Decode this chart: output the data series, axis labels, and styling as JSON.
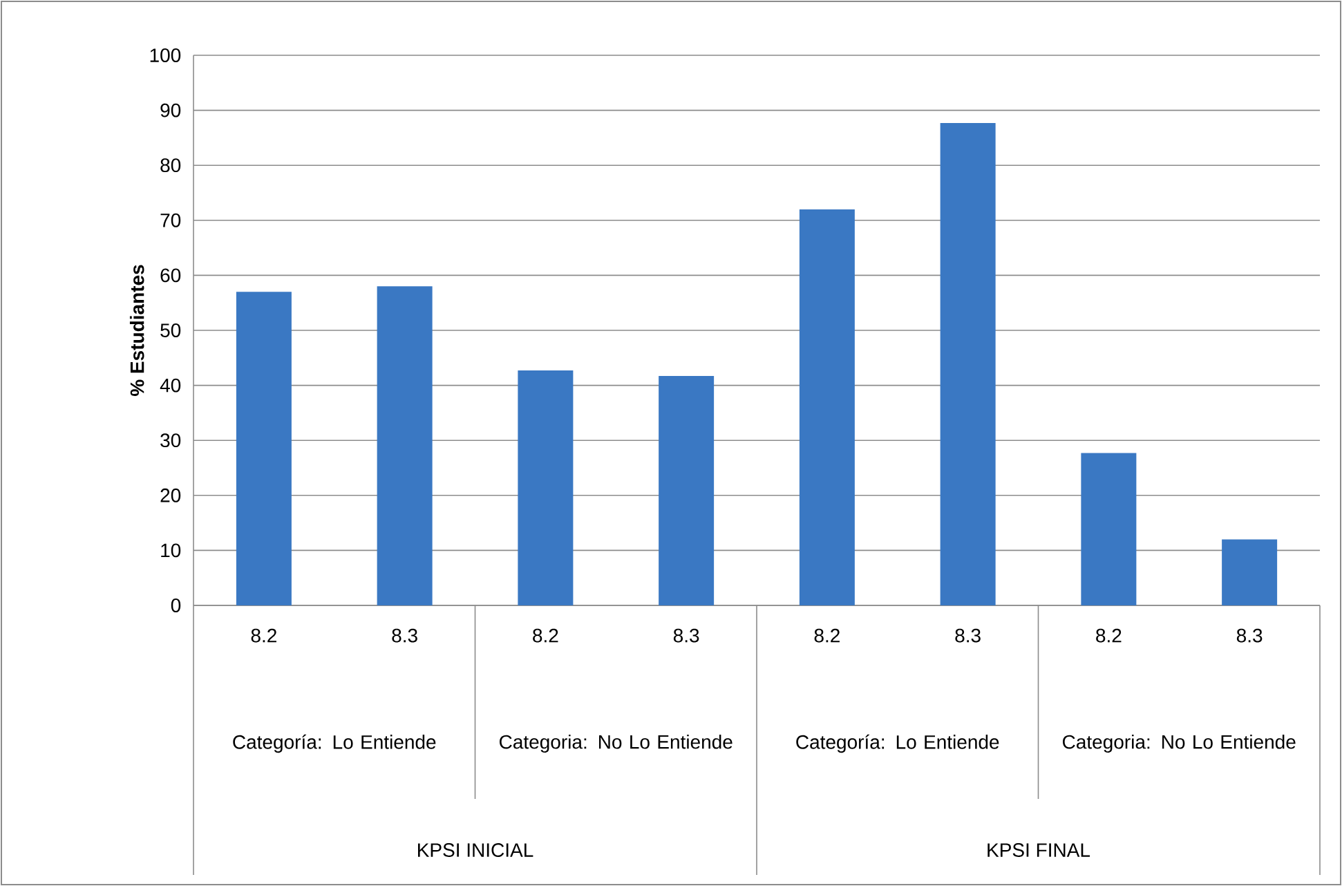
{
  "chart_data": {
    "type": "bar",
    "ylabel": "% Estudiantes",
    "categories": [
      "8.2",
      "8.3",
      "8.2",
      "8.3",
      "8.2",
      "8.3",
      "8.2",
      "8.3"
    ],
    "values": [
      57,
      58,
      42.7,
      41.7,
      72,
      87.7,
      27.7,
      12
    ],
    "color": "#3a78c3",
    "ylim": [
      0,
      100
    ],
    "yticks": [
      0,
      10,
      20,
      30,
      40,
      50,
      60,
      70,
      80,
      90,
      100
    ],
    "grid": "y",
    "annotations": [
      "Categoría: Lo Entiende",
      "Categoria: No Lo Entiende",
      "Categoría: Lo Entiende",
      "Categoria: No Lo Entiende",
      "KPSI INICIAL",
      "KPSI FINAL"
    ]
  }
}
